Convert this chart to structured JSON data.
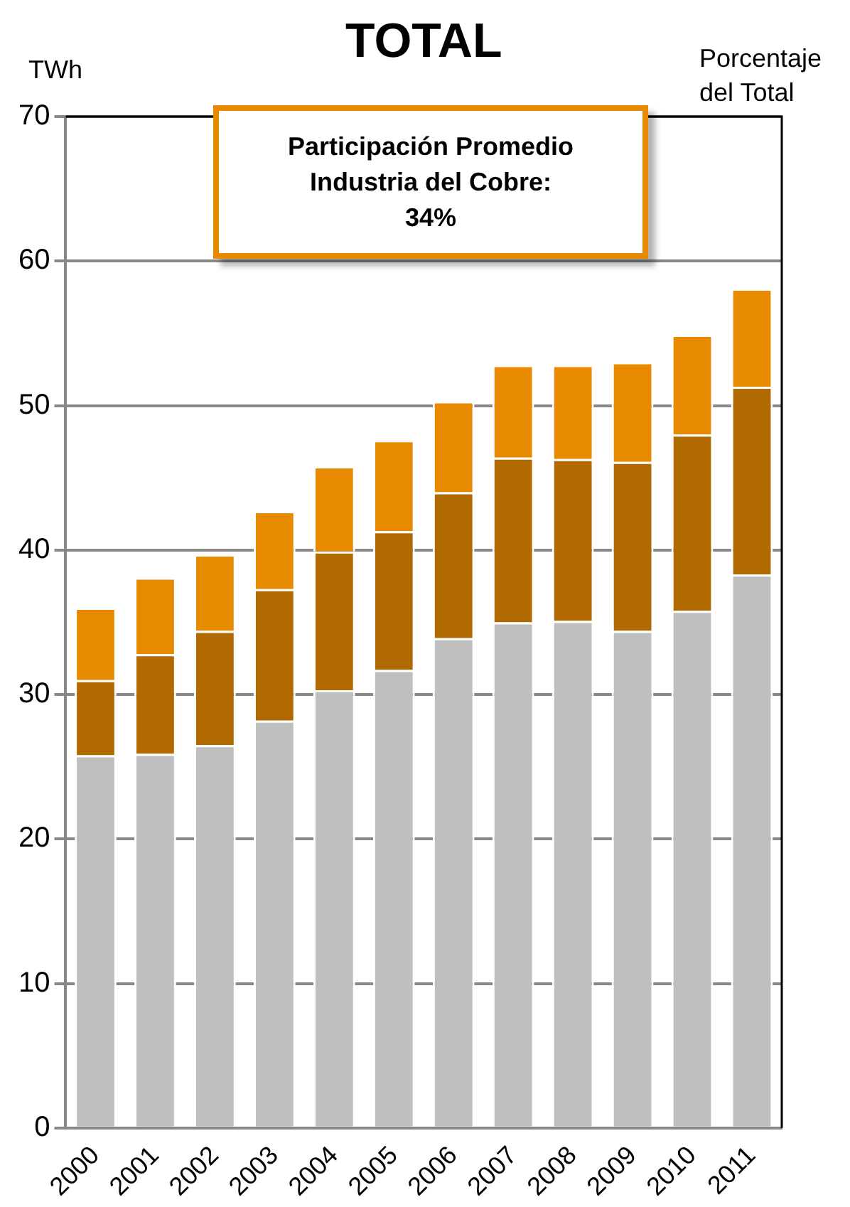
{
  "chart_data": {
    "type": "bar",
    "title": "TOTAL",
    "ylabel": "TWh",
    "y2label": "Porcentaje del Total",
    "stacked": true,
    "grid": "y",
    "legend": false,
    "categories": [
      "2000",
      "2001",
      "2002",
      "2003",
      "2004",
      "2005",
      "2006",
      "2007",
      "2008",
      "2009",
      "2010",
      "2011"
    ],
    "series": [
      {
        "color": "#bfbfbf",
        "values": [
          25.8,
          25.9,
          26.5,
          28.2,
          30.3,
          31.7,
          33.9,
          35.0,
          35.1,
          34.4,
          35.8,
          38.3
        ]
      },
      {
        "color": "#b06a00",
        "values": [
          5.2,
          6.9,
          7.9,
          9.1,
          9.6,
          9.6,
          10.1,
          11.4,
          11.2,
          11.7,
          12.2,
          13.0
        ]
      },
      {
        "color": "#e88a00",
        "values": [
          5.0,
          5.3,
          5.3,
          5.4,
          5.9,
          6.3,
          6.3,
          6.4,
          6.5,
          6.9,
          6.9,
          6.8
        ]
      }
    ],
    "ylim": [
      0,
      70
    ],
    "yticks": [
      0,
      10,
      20,
      30,
      40,
      50,
      60,
      70
    ],
    "annotations": [
      "Participación Promedio\nIndustria del Cobre:\n34%"
    ]
  }
}
